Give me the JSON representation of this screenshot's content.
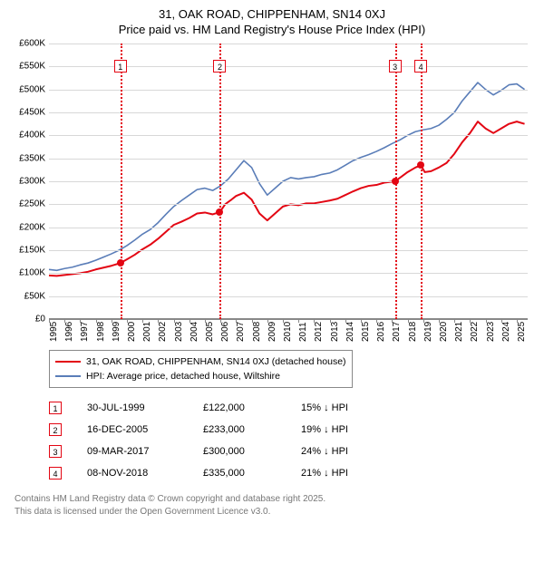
{
  "title": {
    "line1": "31, OAK ROAD, CHIPPENHAM, SN14 0XJ",
    "line2": "Price paid vs. HM Land Registry's House Price Index (HPI)"
  },
  "chart": {
    "type": "line",
    "background_color": "#ffffff",
    "grid_color": "#d8d8d8",
    "axis_color": "#888888",
    "text_color": "#000000",
    "y": {
      "min": 0,
      "max": 600000,
      "step": 50000,
      "labels": [
        "£0",
        "£50K",
        "£100K",
        "£150K",
        "£200K",
        "£250K",
        "£300K",
        "£350K",
        "£400K",
        "£450K",
        "£500K",
        "£550K",
        "£600K"
      ],
      "label_fontsize": 10
    },
    "x": {
      "min": 1995,
      "max": 2025.7,
      "ticks": [
        1995,
        1996,
        1997,
        1998,
        1999,
        2000,
        2001,
        2002,
        2003,
        2004,
        2005,
        2006,
        2007,
        2008,
        2009,
        2010,
        2011,
        2012,
        2013,
        2014,
        2015,
        2016,
        2017,
        2018,
        2019,
        2020,
        2021,
        2022,
        2023,
        2024,
        2025
      ],
      "label_fontsize": 10
    },
    "series": [
      {
        "name": "price_paid",
        "label": "31, OAK ROAD, CHIPPENHAM, SN14 0XJ (detached house)",
        "color": "#e30613",
        "width": 2,
        "data": [
          [
            1995,
            95000
          ],
          [
            1995.5,
            94000
          ],
          [
            1996,
            96000
          ],
          [
            1996.5,
            98000
          ],
          [
            1997,
            100000
          ],
          [
            1997.5,
            103000
          ],
          [
            1998,
            108000
          ],
          [
            1998.5,
            112000
          ],
          [
            1999,
            116000
          ],
          [
            1999.58,
            122000
          ],
          [
            2000,
            130000
          ],
          [
            2000.5,
            140000
          ],
          [
            2001,
            152000
          ],
          [
            2001.5,
            162000
          ],
          [
            2002,
            175000
          ],
          [
            2002.5,
            190000
          ],
          [
            2003,
            205000
          ],
          [
            2003.5,
            212000
          ],
          [
            2004,
            220000
          ],
          [
            2004.5,
            230000
          ],
          [
            2005,
            232000
          ],
          [
            2005.5,
            228000
          ],
          [
            2005.96,
            233000
          ],
          [
            2006.3,
            250000
          ],
          [
            2006.7,
            260000
          ],
          [
            2007,
            268000
          ],
          [
            2007.5,
            275000
          ],
          [
            2008,
            260000
          ],
          [
            2008.5,
            230000
          ],
          [
            2009,
            215000
          ],
          [
            2009.5,
            230000
          ],
          [
            2010,
            245000
          ],
          [
            2010.5,
            250000
          ],
          [
            2011,
            248000
          ],
          [
            2011.5,
            252000
          ],
          [
            2012,
            252000
          ],
          [
            2012.5,
            255000
          ],
          [
            2013,
            258000
          ],
          [
            2013.5,
            262000
          ],
          [
            2014,
            270000
          ],
          [
            2014.5,
            278000
          ],
          [
            2015,
            285000
          ],
          [
            2015.5,
            290000
          ],
          [
            2016,
            292000
          ],
          [
            2016.5,
            297000
          ],
          [
            2017.19,
            300000
          ],
          [
            2017.6,
            310000
          ],
          [
            2018,
            320000
          ],
          [
            2018.5,
            330000
          ],
          [
            2018.85,
            335000
          ],
          [
            2019.1,
            320000
          ],
          [
            2019.5,
            322000
          ],
          [
            2020,
            330000
          ],
          [
            2020.5,
            340000
          ],
          [
            2021,
            360000
          ],
          [
            2021.5,
            385000
          ],
          [
            2022,
            405000
          ],
          [
            2022.5,
            430000
          ],
          [
            2023,
            415000
          ],
          [
            2023.5,
            405000
          ],
          [
            2024,
            415000
          ],
          [
            2024.5,
            425000
          ],
          [
            2025,
            430000
          ],
          [
            2025.5,
            425000
          ]
        ],
        "markers": [
          {
            "x": 1999.58,
            "y": 122000
          },
          {
            "x": 2005.96,
            "y": 233000
          },
          {
            "x": 2017.19,
            "y": 300000
          },
          {
            "x": 2018.85,
            "y": 335000
          }
        ]
      },
      {
        "name": "hpi",
        "label": "HPI: Average price, detached house, Wiltshire",
        "color": "#5a7db8",
        "width": 1.6,
        "data": [
          [
            1995,
            108000
          ],
          [
            1995.5,
            106000
          ],
          [
            1996,
            110000
          ],
          [
            1996.5,
            113000
          ],
          [
            1997,
            118000
          ],
          [
            1997.5,
            122000
          ],
          [
            1998,
            128000
          ],
          [
            1998.5,
            135000
          ],
          [
            1999,
            142000
          ],
          [
            1999.5,
            150000
          ],
          [
            2000,
            160000
          ],
          [
            2000.5,
            172000
          ],
          [
            2001,
            185000
          ],
          [
            2001.5,
            195000
          ],
          [
            2002,
            210000
          ],
          [
            2002.5,
            228000
          ],
          [
            2003,
            245000
          ],
          [
            2003.5,
            258000
          ],
          [
            2004,
            270000
          ],
          [
            2004.5,
            282000
          ],
          [
            2005,
            285000
          ],
          [
            2005.5,
            280000
          ],
          [
            2006,
            290000
          ],
          [
            2006.5,
            305000
          ],
          [
            2007,
            325000
          ],
          [
            2007.5,
            345000
          ],
          [
            2008,
            330000
          ],
          [
            2008.5,
            295000
          ],
          [
            2009,
            270000
          ],
          [
            2009.5,
            285000
          ],
          [
            2010,
            300000
          ],
          [
            2010.5,
            308000
          ],
          [
            2011,
            305000
          ],
          [
            2011.5,
            308000
          ],
          [
            2012,
            310000
          ],
          [
            2012.5,
            315000
          ],
          [
            2013,
            318000
          ],
          [
            2013.5,
            325000
          ],
          [
            2014,
            335000
          ],
          [
            2014.5,
            345000
          ],
          [
            2015,
            352000
          ],
          [
            2015.5,
            358000
          ],
          [
            2016,
            365000
          ],
          [
            2016.5,
            373000
          ],
          [
            2017,
            382000
          ],
          [
            2017.5,
            390000
          ],
          [
            2018,
            400000
          ],
          [
            2018.5,
            408000
          ],
          [
            2019,
            412000
          ],
          [
            2019.5,
            415000
          ],
          [
            2020,
            422000
          ],
          [
            2020.5,
            435000
          ],
          [
            2021,
            450000
          ],
          [
            2021.5,
            475000
          ],
          [
            2022,
            495000
          ],
          [
            2022.5,
            515000
          ],
          [
            2023,
            500000
          ],
          [
            2023.5,
            488000
          ],
          [
            2024,
            498000
          ],
          [
            2024.5,
            510000
          ],
          [
            2025,
            512000
          ],
          [
            2025.5,
            500000
          ]
        ]
      }
    ],
    "events": [
      {
        "n": "1",
        "x": 1999.58,
        "color": "#e30613",
        "date": "30-JUL-1999",
        "price": "£122,000",
        "diff": "15% ↓ HPI"
      },
      {
        "n": "2",
        "x": 2005.96,
        "color": "#e30613",
        "date": "16-DEC-2005",
        "price": "£233,000",
        "diff": "19% ↓ HPI"
      },
      {
        "n": "3",
        "x": 2017.19,
        "color": "#e30613",
        "date": "09-MAR-2017",
        "price": "£300,000",
        "diff": "24% ↓ HPI"
      },
      {
        "n": "4",
        "x": 2018.85,
        "color": "#e30613",
        "date": "08-NOV-2018",
        "price": "£335,000",
        "diff": "21% ↓ HPI"
      }
    ],
    "event_box_top_pct": 6
  },
  "legend": {
    "border_color": "#888888"
  },
  "footer": {
    "line1": "Contains HM Land Registry data © Crown copyright and database right 2025.",
    "line2": "This data is licensed under the Open Government Licence v3.0."
  }
}
